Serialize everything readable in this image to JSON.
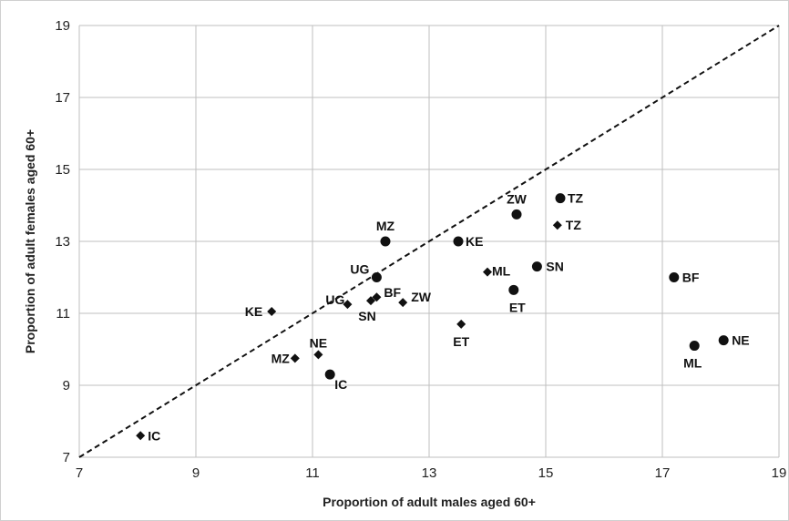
{
  "chart_data": {
    "type": "scatter",
    "title": "",
    "xlabel": "Proportion of adult males aged 60+",
    "ylabel": "Proportion of adult females aged 60+",
    "xlim": [
      7,
      19
    ],
    "ylim": [
      7,
      19
    ],
    "xticks": [
      "7",
      "9",
      "11",
      "13",
      "15",
      "17",
      "19"
    ],
    "yticks": [
      "7",
      "9",
      "11",
      "13",
      "15",
      "17",
      "19"
    ],
    "grid": true,
    "reference_line": {
      "style": "dashed",
      "from": [
        7,
        7
      ],
      "to": [
        19,
        19
      ]
    },
    "colors": {
      "marker": "#111111",
      "grid": "#bfbfbf",
      "line": "#111111"
    },
    "series": [
      {
        "marker": "circle",
        "points": [
          {
            "label": "TZ",
            "x": 15.25,
            "y": 14.2
          },
          {
            "label": "ZW",
            "x": 14.5,
            "y": 13.75
          },
          {
            "label": "MZ",
            "x": 12.25,
            "y": 13.0
          },
          {
            "label": "KE",
            "x": 13.5,
            "y": 13.0
          },
          {
            "label": "UG",
            "x": 12.1,
            "y": 12.0
          },
          {
            "label": "SN",
            "x": 14.85,
            "y": 12.3
          },
          {
            "label": "ET",
            "x": 14.45,
            "y": 11.65
          },
          {
            "label": "BF",
            "x": 17.2,
            "y": 12.0
          },
          {
            "label": "NE",
            "x": 18.05,
            "y": 10.25
          },
          {
            "label": "ML",
            "x": 17.55,
            "y": 10.1
          },
          {
            "label": "IC",
            "x": 11.3,
            "y": 9.3
          }
        ]
      },
      {
        "marker": "diamond",
        "points": [
          {
            "label": "TZ",
            "x": 15.2,
            "y": 13.45
          },
          {
            "label": "ML",
            "x": 14.0,
            "y": 12.15
          },
          {
            "label": "ZW",
            "x": 12.55,
            "y": 11.3
          },
          {
            "label": "BF",
            "x": 12.1,
            "y": 11.45
          },
          {
            "label": "SN",
            "x": 12.0,
            "y": 11.35
          },
          {
            "label": "UG",
            "x": 11.6,
            "y": 11.25
          },
          {
            "label": "KE",
            "x": 10.3,
            "y": 11.05
          },
          {
            "label": "ET",
            "x": 13.55,
            "y": 10.7
          },
          {
            "label": "NE",
            "x": 11.1,
            "y": 9.85
          },
          {
            "label": "MZ",
            "x": 10.7,
            "y": 9.75
          },
          {
            "label": "IC",
            "x": 8.05,
            "y": 7.6
          }
        ]
      }
    ]
  }
}
